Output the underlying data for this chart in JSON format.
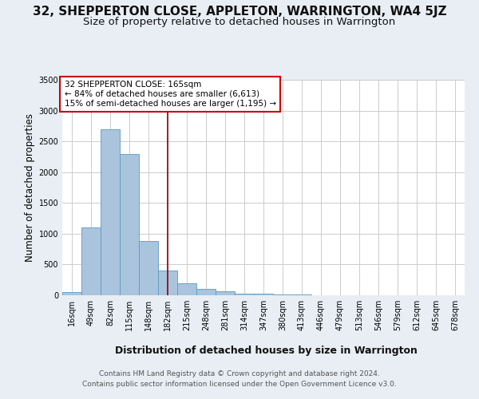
{
  "title": "32, SHEPPERTON CLOSE, APPLETON, WARRINGTON, WA4 5JZ",
  "subtitle": "Size of property relative to detached houses in Warrington",
  "xlabel": "Distribution of detached houses by size in Warrington",
  "ylabel": "Number of detached properties",
  "footer_line1": "Contains HM Land Registry data © Crown copyright and database right 2024.",
  "footer_line2": "Contains public sector information licensed under the Open Government Licence v3.0.",
  "bins": [
    "16sqm",
    "49sqm",
    "82sqm",
    "115sqm",
    "148sqm",
    "182sqm",
    "215sqm",
    "248sqm",
    "281sqm",
    "314sqm",
    "347sqm",
    "380sqm",
    "413sqm",
    "446sqm",
    "479sqm",
    "513sqm",
    "546sqm",
    "579sqm",
    "612sqm",
    "645sqm",
    "678sqm"
  ],
  "values": [
    50,
    1100,
    2700,
    2300,
    880,
    400,
    190,
    110,
    60,
    30,
    20,
    15,
    10,
    5,
    2,
    2,
    1,
    1,
    0,
    0,
    0
  ],
  "bar_color": "#aac4de",
  "bar_edge_color": "#5a9bc0",
  "grid_color": "#cccccc",
  "background_color": "#e8eef4",
  "plot_bg_color": "#ffffff",
  "vline_x": 5.0,
  "vline_color": "#8b0000",
  "annotation_text_line1": "32 SHEPPERTON CLOSE: 165sqm",
  "annotation_text_line2": "← 84% of detached houses are smaller (6,613)",
  "annotation_text_line3": "15% of semi-detached houses are larger (1,195) →",
  "annotation_box_color": "#ffffff",
  "annotation_box_edge": "#cc0000",
  "ylim": [
    0,
    3500
  ],
  "yticks": [
    0,
    500,
    1000,
    1500,
    2000,
    2500,
    3000,
    3500
  ],
  "title_fontsize": 11,
  "subtitle_fontsize": 9.5,
  "ylabel_fontsize": 8.5,
  "xlabel_fontsize": 9,
  "tick_fontsize": 7,
  "footer_fontsize": 6.5,
  "annotation_fontsize": 7.5
}
